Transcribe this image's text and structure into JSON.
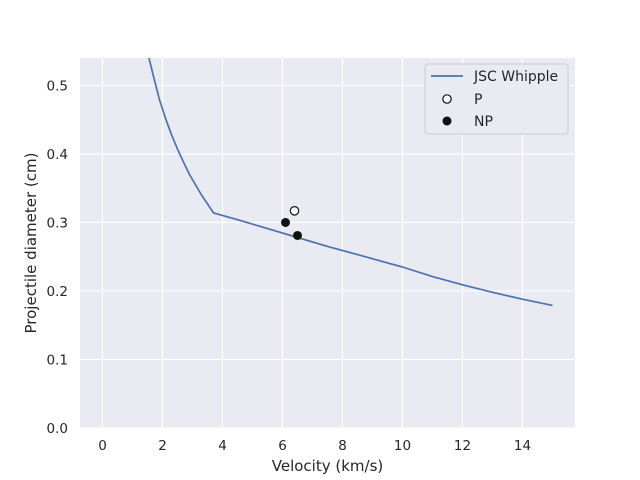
{
  "chart_data": {
    "type": "line",
    "xlabel": "Velocity (km/s)",
    "ylabel": "Projectile diameter (cm)",
    "xlim": [
      -0.75,
      15.75
    ],
    "ylim": [
      0.0,
      0.54
    ],
    "xticks": [
      0,
      2,
      4,
      6,
      8,
      10,
      12,
      14
    ],
    "yticks": [
      0.0,
      0.1,
      0.2,
      0.3,
      0.4,
      0.5
    ],
    "grid": true,
    "legend_position": "top-right",
    "colors": {
      "line": "#4c72b0",
      "background": "#eaeaf2",
      "grid": "#ffffff",
      "marker": "#111111"
    },
    "series": [
      {
        "name": "JSC Whipple",
        "kind": "line",
        "x": [
          1.55,
          1.7,
          1.9,
          2.1,
          2.3,
          2.5,
          2.7,
          2.9,
          3.1,
          3.3,
          3.5,
          3.7,
          4.5,
          5.5,
          6.5,
          7.5,
          8.5,
          9.5,
          10.0,
          11.0,
          12.0,
          13.0,
          14.0,
          15.0
        ],
        "y": [
          0.54,
          0.513,
          0.479,
          0.452,
          0.428,
          0.407,
          0.388,
          0.37,
          0.355,
          0.34,
          0.327,
          0.314,
          0.304,
          0.291,
          0.278,
          0.265,
          0.253,
          0.241,
          0.235,
          0.221,
          0.209,
          0.198,
          0.188,
          0.179
        ]
      },
      {
        "name": "P",
        "kind": "scatter",
        "marker": "open-circle",
        "x": [
          6.4
        ],
        "y": [
          0.317
        ]
      },
      {
        "name": "NP",
        "kind": "scatter",
        "marker": "filled-circle",
        "x": [
          6.1,
          6.5
        ],
        "y": [
          0.3,
          0.281
        ]
      }
    ]
  }
}
